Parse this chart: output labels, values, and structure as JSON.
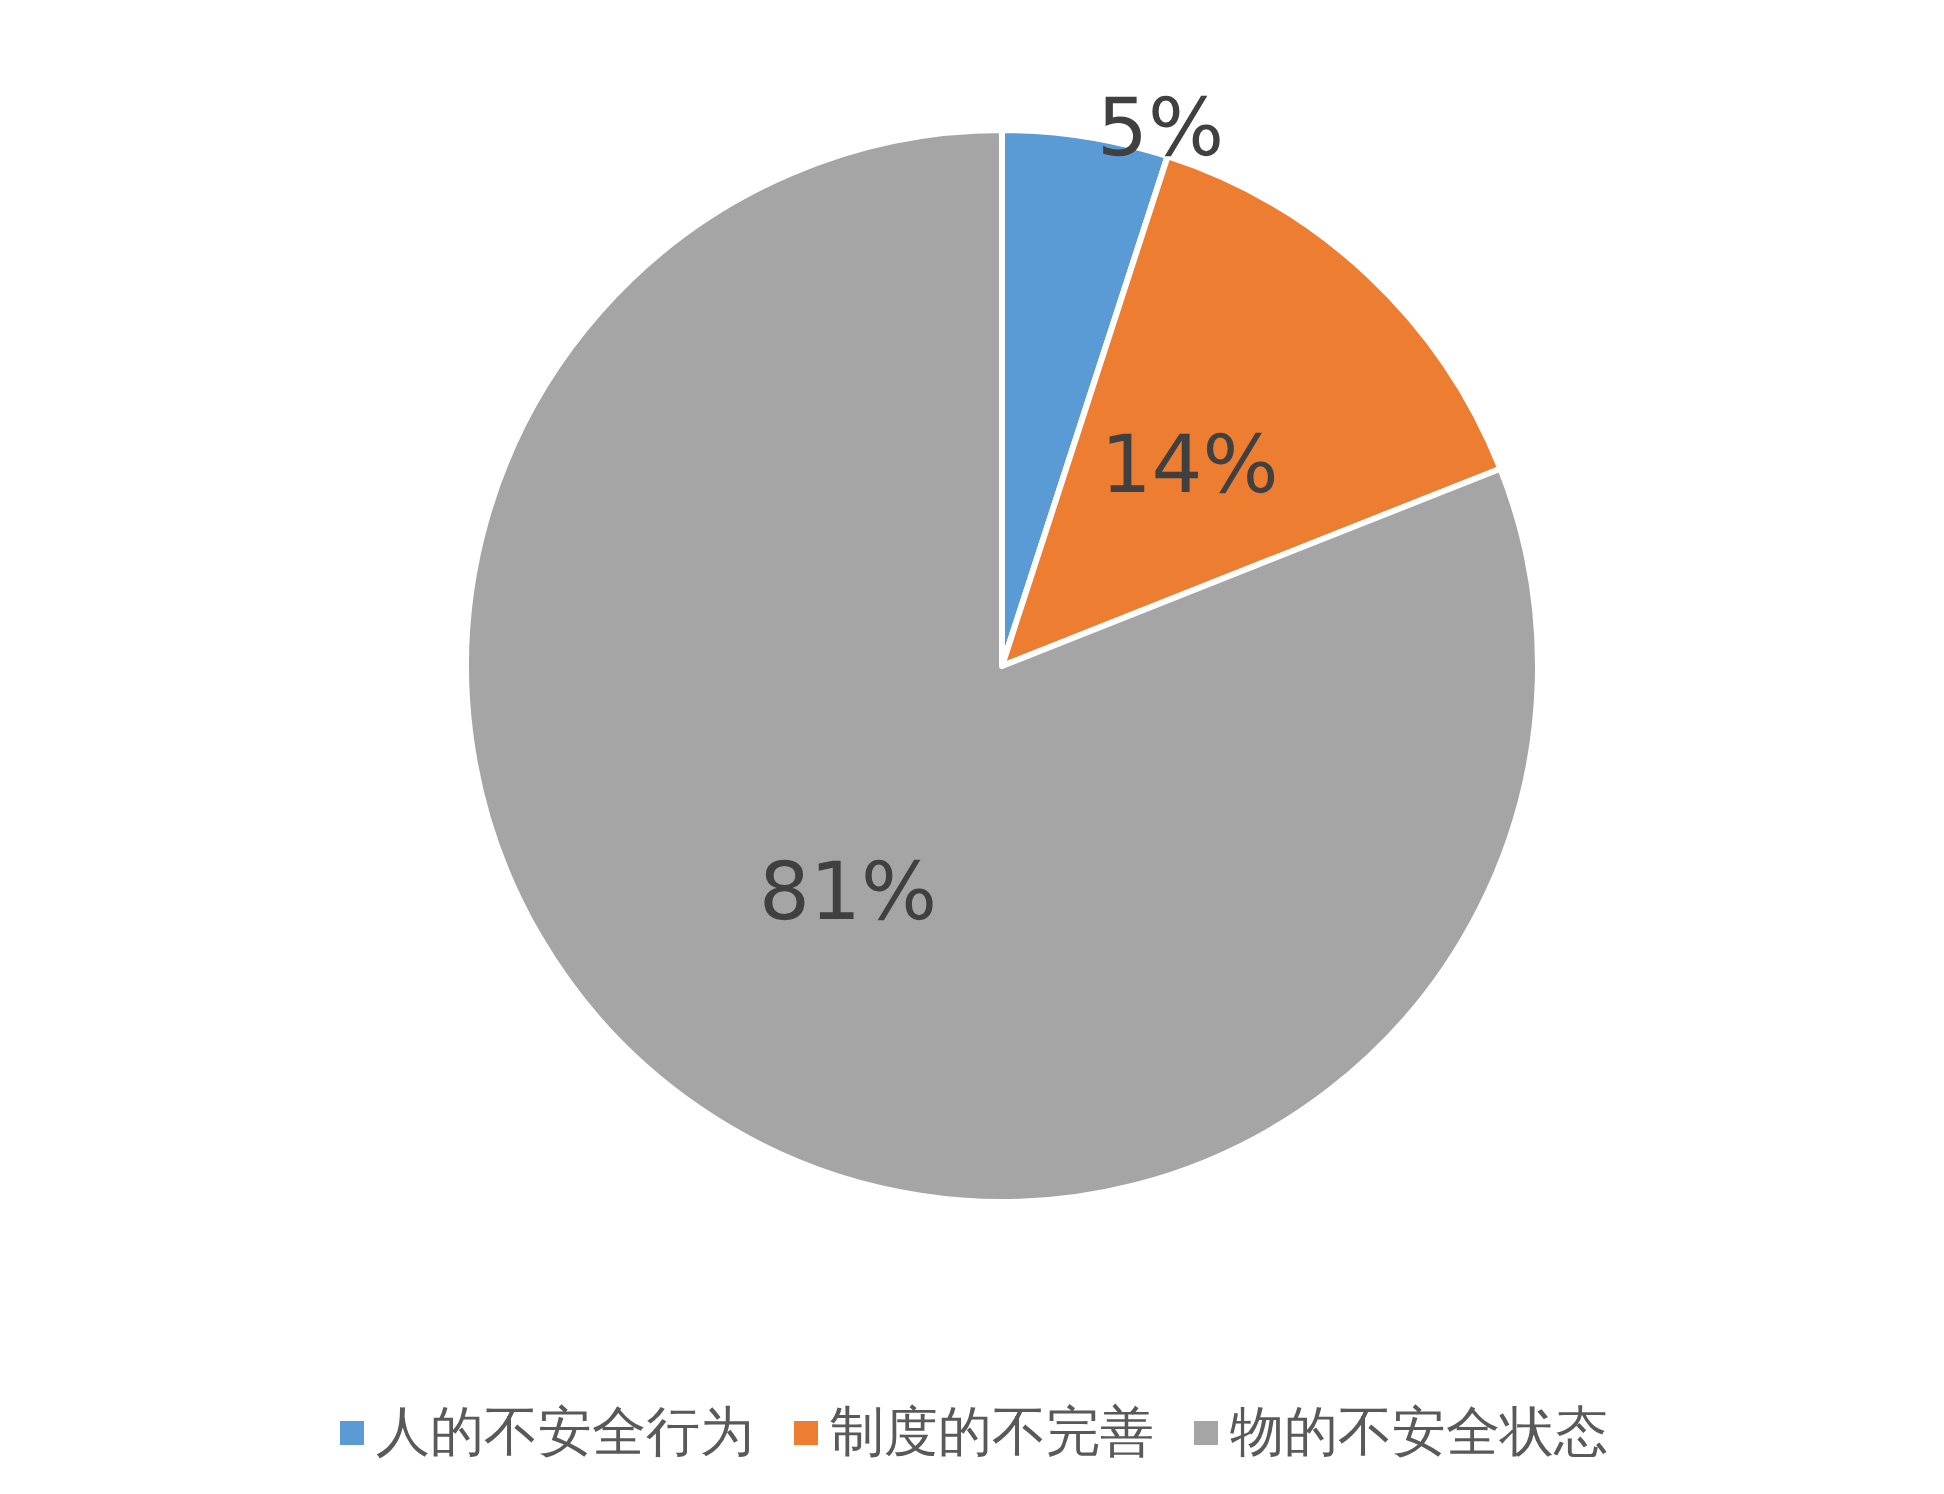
{
  "chart_data": {
    "type": "pie",
    "categories": [
      "人的不安全行为",
      "制度的不完善",
      "物的不安全状态"
    ],
    "values": [
      5,
      14,
      81
    ],
    "colors": [
      "#5b9bd5",
      "#ed7d31",
      "#a5a5a5"
    ],
    "value_labels": [
      "5%",
      "14%",
      "81%"
    ],
    "legend": "bottom"
  }
}
